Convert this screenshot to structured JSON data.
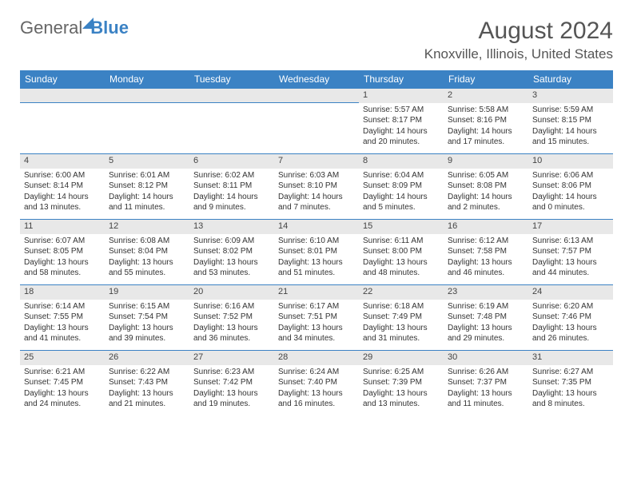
{
  "logo": {
    "part1": "General",
    "part2": "Blue"
  },
  "title": "August 2024",
  "location": "Knoxville, Illinois, United States",
  "colors": {
    "header_bg": "#3b82c4",
    "daynum_bg": "#e8e8e8",
    "border": "#3b82c4"
  },
  "weekdays": [
    "Sunday",
    "Monday",
    "Tuesday",
    "Wednesday",
    "Thursday",
    "Friday",
    "Saturday"
  ],
  "weeks": [
    [
      null,
      null,
      null,
      null,
      {
        "n": "1",
        "sr": "Sunrise: 5:57 AM",
        "ss": "Sunset: 8:17 PM",
        "dl": "Daylight: 14 hours and 20 minutes."
      },
      {
        "n": "2",
        "sr": "Sunrise: 5:58 AM",
        "ss": "Sunset: 8:16 PM",
        "dl": "Daylight: 14 hours and 17 minutes."
      },
      {
        "n": "3",
        "sr": "Sunrise: 5:59 AM",
        "ss": "Sunset: 8:15 PM",
        "dl": "Daylight: 14 hours and 15 minutes."
      }
    ],
    [
      {
        "n": "4",
        "sr": "Sunrise: 6:00 AM",
        "ss": "Sunset: 8:14 PM",
        "dl": "Daylight: 14 hours and 13 minutes."
      },
      {
        "n": "5",
        "sr": "Sunrise: 6:01 AM",
        "ss": "Sunset: 8:12 PM",
        "dl": "Daylight: 14 hours and 11 minutes."
      },
      {
        "n": "6",
        "sr": "Sunrise: 6:02 AM",
        "ss": "Sunset: 8:11 PM",
        "dl": "Daylight: 14 hours and 9 minutes."
      },
      {
        "n": "7",
        "sr": "Sunrise: 6:03 AM",
        "ss": "Sunset: 8:10 PM",
        "dl": "Daylight: 14 hours and 7 minutes."
      },
      {
        "n": "8",
        "sr": "Sunrise: 6:04 AM",
        "ss": "Sunset: 8:09 PM",
        "dl": "Daylight: 14 hours and 5 minutes."
      },
      {
        "n": "9",
        "sr": "Sunrise: 6:05 AM",
        "ss": "Sunset: 8:08 PM",
        "dl": "Daylight: 14 hours and 2 minutes."
      },
      {
        "n": "10",
        "sr": "Sunrise: 6:06 AM",
        "ss": "Sunset: 8:06 PM",
        "dl": "Daylight: 14 hours and 0 minutes."
      }
    ],
    [
      {
        "n": "11",
        "sr": "Sunrise: 6:07 AM",
        "ss": "Sunset: 8:05 PM",
        "dl": "Daylight: 13 hours and 58 minutes."
      },
      {
        "n": "12",
        "sr": "Sunrise: 6:08 AM",
        "ss": "Sunset: 8:04 PM",
        "dl": "Daylight: 13 hours and 55 minutes."
      },
      {
        "n": "13",
        "sr": "Sunrise: 6:09 AM",
        "ss": "Sunset: 8:02 PM",
        "dl": "Daylight: 13 hours and 53 minutes."
      },
      {
        "n": "14",
        "sr": "Sunrise: 6:10 AM",
        "ss": "Sunset: 8:01 PM",
        "dl": "Daylight: 13 hours and 51 minutes."
      },
      {
        "n": "15",
        "sr": "Sunrise: 6:11 AM",
        "ss": "Sunset: 8:00 PM",
        "dl": "Daylight: 13 hours and 48 minutes."
      },
      {
        "n": "16",
        "sr": "Sunrise: 6:12 AM",
        "ss": "Sunset: 7:58 PM",
        "dl": "Daylight: 13 hours and 46 minutes."
      },
      {
        "n": "17",
        "sr": "Sunrise: 6:13 AM",
        "ss": "Sunset: 7:57 PM",
        "dl": "Daylight: 13 hours and 44 minutes."
      }
    ],
    [
      {
        "n": "18",
        "sr": "Sunrise: 6:14 AM",
        "ss": "Sunset: 7:55 PM",
        "dl": "Daylight: 13 hours and 41 minutes."
      },
      {
        "n": "19",
        "sr": "Sunrise: 6:15 AM",
        "ss": "Sunset: 7:54 PM",
        "dl": "Daylight: 13 hours and 39 minutes."
      },
      {
        "n": "20",
        "sr": "Sunrise: 6:16 AM",
        "ss": "Sunset: 7:52 PM",
        "dl": "Daylight: 13 hours and 36 minutes."
      },
      {
        "n": "21",
        "sr": "Sunrise: 6:17 AM",
        "ss": "Sunset: 7:51 PM",
        "dl": "Daylight: 13 hours and 34 minutes."
      },
      {
        "n": "22",
        "sr": "Sunrise: 6:18 AM",
        "ss": "Sunset: 7:49 PM",
        "dl": "Daylight: 13 hours and 31 minutes."
      },
      {
        "n": "23",
        "sr": "Sunrise: 6:19 AM",
        "ss": "Sunset: 7:48 PM",
        "dl": "Daylight: 13 hours and 29 minutes."
      },
      {
        "n": "24",
        "sr": "Sunrise: 6:20 AM",
        "ss": "Sunset: 7:46 PM",
        "dl": "Daylight: 13 hours and 26 minutes."
      }
    ],
    [
      {
        "n": "25",
        "sr": "Sunrise: 6:21 AM",
        "ss": "Sunset: 7:45 PM",
        "dl": "Daylight: 13 hours and 24 minutes."
      },
      {
        "n": "26",
        "sr": "Sunrise: 6:22 AM",
        "ss": "Sunset: 7:43 PM",
        "dl": "Daylight: 13 hours and 21 minutes."
      },
      {
        "n": "27",
        "sr": "Sunrise: 6:23 AM",
        "ss": "Sunset: 7:42 PM",
        "dl": "Daylight: 13 hours and 19 minutes."
      },
      {
        "n": "28",
        "sr": "Sunrise: 6:24 AM",
        "ss": "Sunset: 7:40 PM",
        "dl": "Daylight: 13 hours and 16 minutes."
      },
      {
        "n": "29",
        "sr": "Sunrise: 6:25 AM",
        "ss": "Sunset: 7:39 PM",
        "dl": "Daylight: 13 hours and 13 minutes."
      },
      {
        "n": "30",
        "sr": "Sunrise: 6:26 AM",
        "ss": "Sunset: 7:37 PM",
        "dl": "Daylight: 13 hours and 11 minutes."
      },
      {
        "n": "31",
        "sr": "Sunrise: 6:27 AM",
        "ss": "Sunset: 7:35 PM",
        "dl": "Daylight: 13 hours and 8 minutes."
      }
    ]
  ]
}
